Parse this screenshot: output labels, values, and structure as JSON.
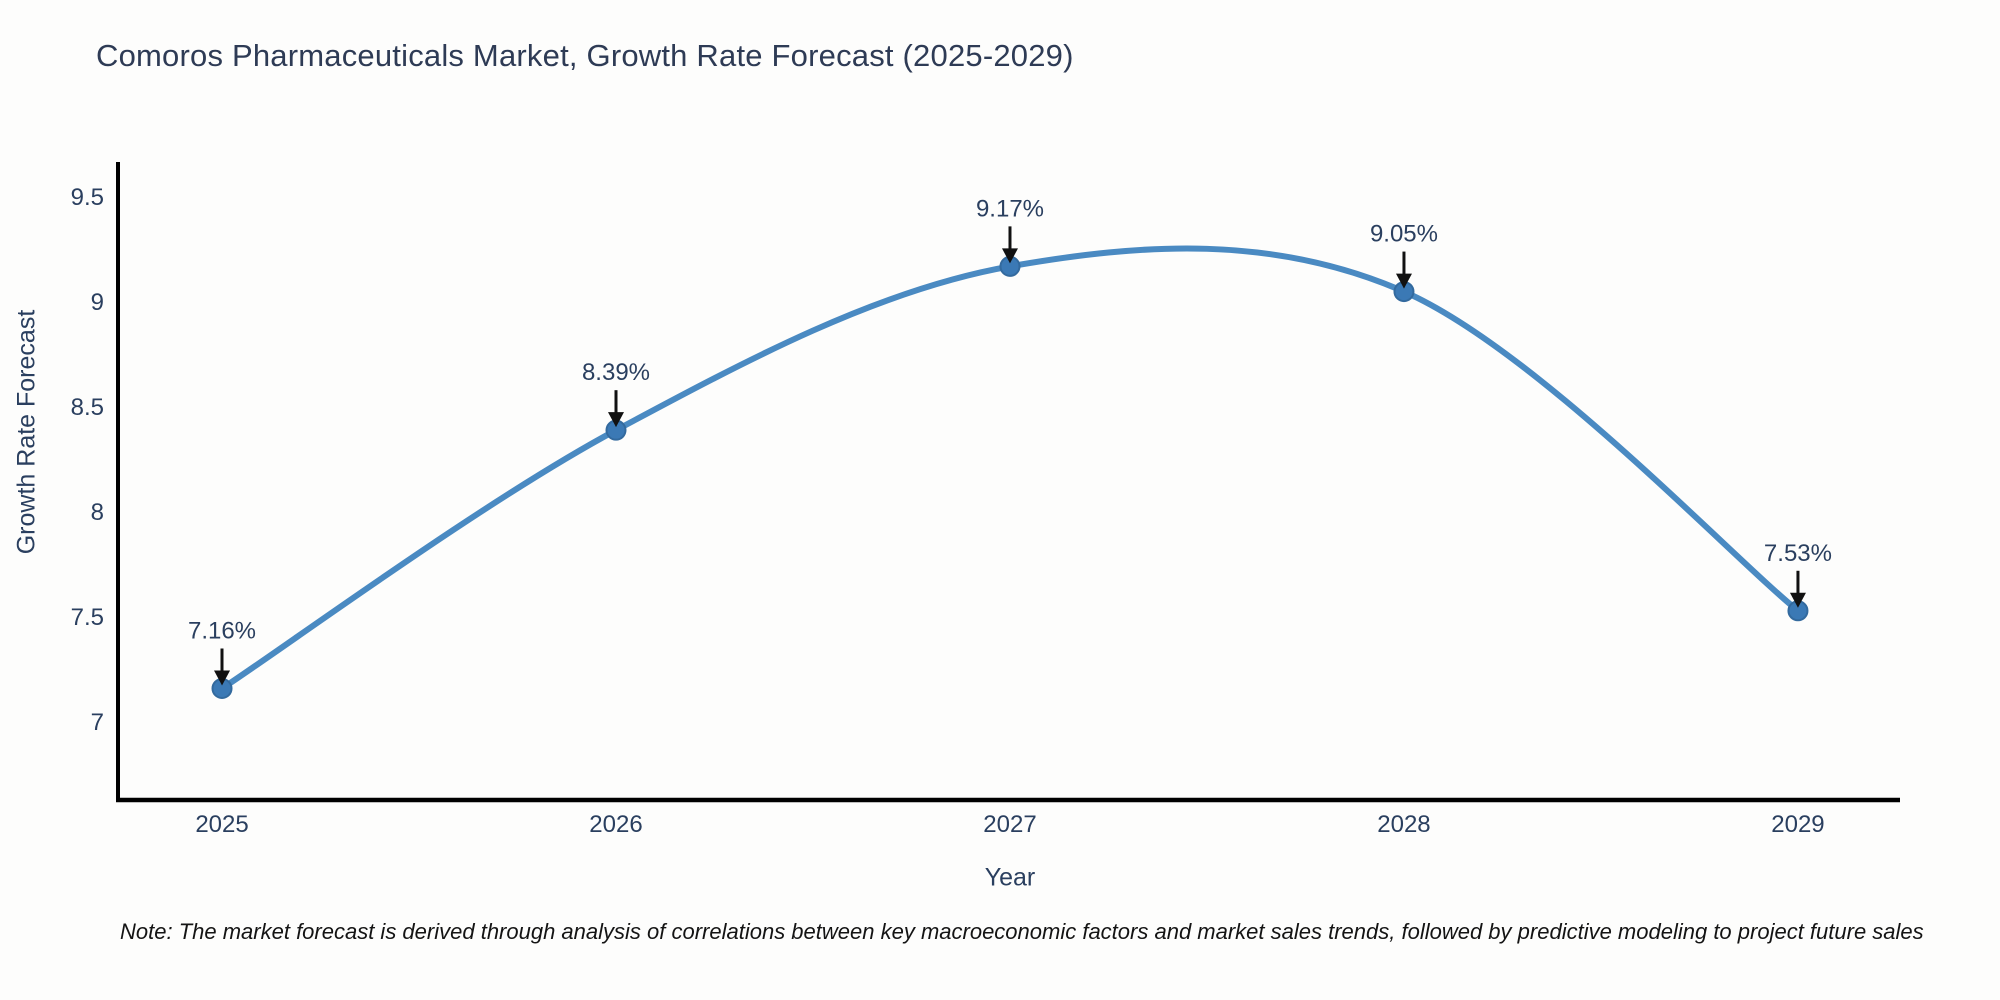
{
  "title": "Comoros Pharmaceuticals Market, Growth Rate Forecast (2025-2029)",
  "note": "Note: The market forecast is derived through analysis of correlations between key macroeconomic factors and market sales trends, followed by predictive modeling to project future sales",
  "chart_data": {
    "type": "line",
    "title": "Comoros Pharmaceuticals Market, Growth Rate Forecast (2025-2029)",
    "xlabel": "Year",
    "ylabel": "Growth Rate Forecast",
    "x": [
      2025,
      2026,
      2027,
      2028,
      2029
    ],
    "series": [
      {
        "name": "Growth Rate Forecast",
        "values": [
          7.16,
          8.39,
          9.17,
          9.05,
          7.53
        ]
      }
    ],
    "point_labels": [
      "7.16%",
      "8.39%",
      "9.17%",
      "9.05%",
      "7.53%"
    ],
    "x_tick_labels": [
      "2025",
      "2026",
      "2027",
      "2028",
      "2029"
    ],
    "y_ticks": [
      7,
      7.5,
      8,
      8.5,
      9,
      9.5
    ],
    "y_tick_labels": [
      "7",
      "7.5",
      "8",
      "8.5",
      "9",
      "9.5"
    ],
    "xlim": [
      2024.736,
      2029.259
    ],
    "ylim": [
      6.629,
      9.667
    ],
    "grid": false,
    "legend": "none",
    "line_shape": "spline",
    "colors": {
      "line": "#4a8ac2",
      "marker_fill": "#3b79b5",
      "marker_edge": "#336a9e",
      "annotation_text": "#2a3f5f",
      "arrow": "#111111",
      "axis_line": "#000000",
      "tick_text": "#2a3f5f"
    }
  }
}
